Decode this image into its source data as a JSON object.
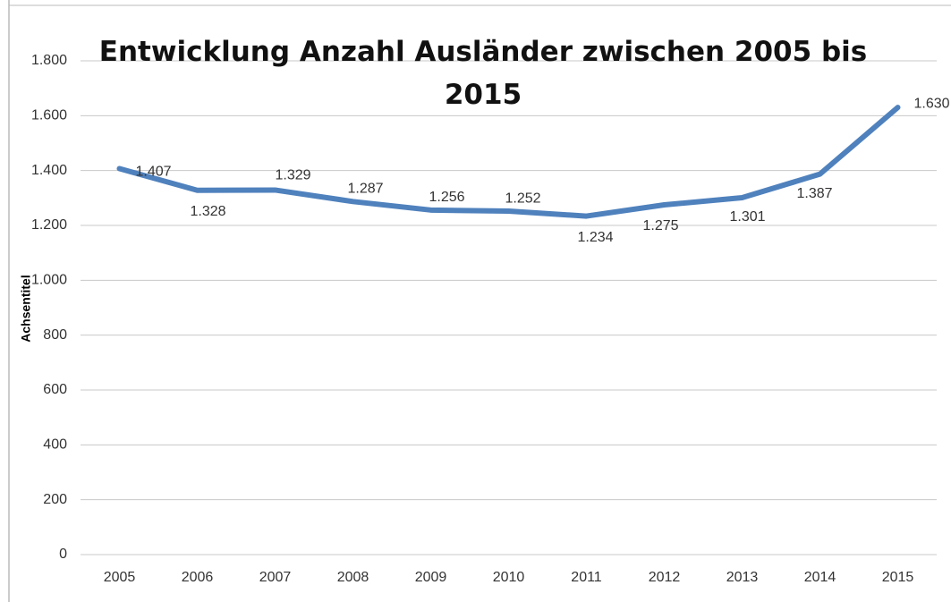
{
  "chart_data": {
    "type": "line",
    "title": "Entwicklung Anzahl Ausländer zwischen 2005 bis 2015",
    "y_label": "Achsentitel",
    "categories": [
      "2005",
      "2006",
      "2007",
      "2008",
      "2009",
      "2010",
      "2011",
      "2012",
      "2013",
      "2014",
      "2015"
    ],
    "series": [
      {
        "name": "Anzahl Ausländer",
        "color": "#4f81bd",
        "values": [
          1407,
          1328,
          1329,
          1287,
          1256,
          1252,
          1234,
          1275,
          1301,
          1387,
          1630
        ],
        "value_labels": [
          "1.407",
          "1.328",
          "1.329",
          "1.287",
          "1.256",
          "1.252",
          "1.234",
          "1.275",
          "1.301",
          "1.387",
          "1.630"
        ]
      }
    ],
    "ylim": [
      0,
      1800
    ],
    "yticks": [
      0,
      200,
      400,
      600,
      800,
      {
        "value": 1000,
        "label": "1.000"
      },
      {
        "value": 1200,
        "label": "1.200"
      },
      {
        "value": 1400,
        "label": "1.400"
      },
      {
        "value": 1600,
        "label": "1.600"
      },
      {
        "value": 1800,
        "label": "1.800"
      }
    ],
    "grid": true
  }
}
